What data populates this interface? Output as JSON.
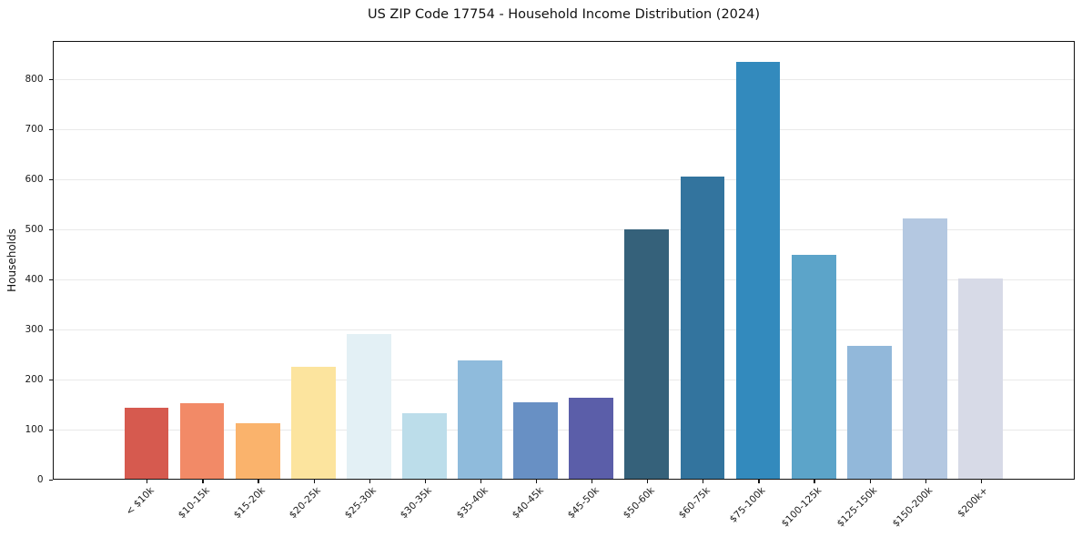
{
  "chart_data": {
    "type": "bar",
    "title": "US ZIP Code 17754 - Household Income Distribution (2024)",
    "xlabel": "",
    "ylabel": "Households",
    "categories": [
      "< $10k",
      "$10-15k",
      "$15-20k",
      "$20-25k",
      "$25-30k",
      "$30-35k",
      "$35-40k",
      "$40-45k",
      "$45-50k",
      "$50-60k",
      "$60-75k",
      "$75-100k",
      "$100-125k",
      "$125-150k",
      "$150-200k",
      "$200k+"
    ],
    "values": [
      142,
      150,
      110,
      224,
      289,
      131,
      236,
      153,
      162,
      498,
      603,
      833,
      448,
      265,
      520,
      399
    ],
    "bar_colors": [
      "#D65A4F",
      "#F28A67",
      "#FAB36C",
      "#FCE49E",
      "#E3F0F5",
      "#BCDDEA",
      "#8FBBDC",
      "#6890C4",
      "#5B5EA9",
      "#35617A",
      "#33749E",
      "#338ABD",
      "#5CA4C9",
      "#92B8DA",
      "#B4C8E1",
      "#D7DAE7"
    ],
    "yticks": [
      0,
      100,
      200,
      300,
      400,
      500,
      600,
      700,
      800
    ],
    "ylim": [
      0,
      876
    ],
    "grid": "horizontal",
    "grid_color": "#e9e9e9",
    "spine_color": "#111111",
    "text_color": "#1a1a1a",
    "background_color": "#ffffff",
    "xtick_rotation_deg": 45,
    "legend": "none"
  }
}
